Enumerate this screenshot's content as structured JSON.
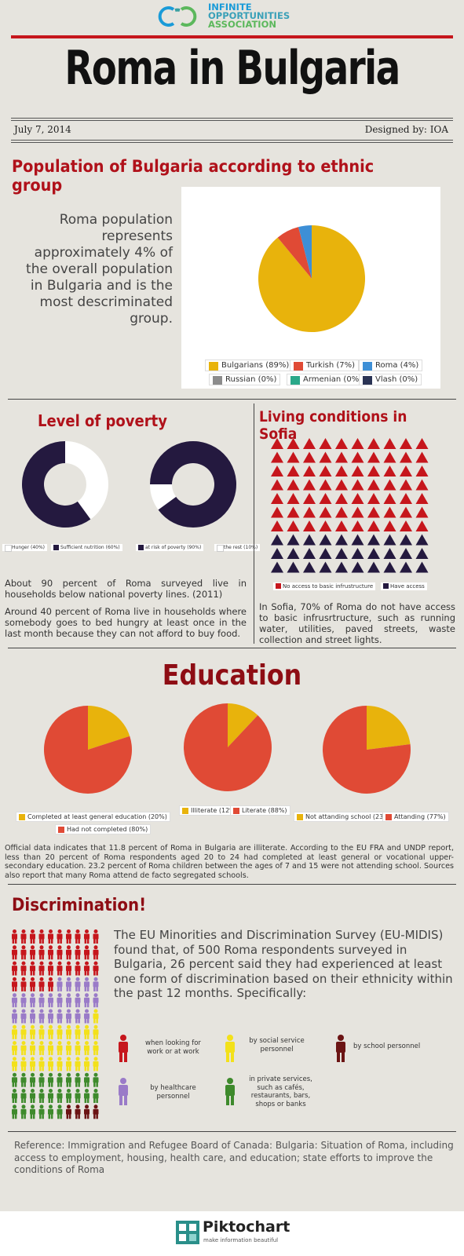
{
  "header": {
    "logo_line1": "INFINITE",
    "logo_line2": "OPPORTUNITIES",
    "logo_line3": "ASSOCIATION",
    "title": "Roma in Bulgaria",
    "date": "July 7, 2014",
    "designer": "Designed by: IOA"
  },
  "colors": {
    "red": "#c6161c",
    "navy": "#24193f",
    "yellow": "#e8b30c",
    "slice_red": "#e04a35",
    "blue": "#3d8fd6",
    "grey": "#8c8c8c",
    "teal": "#2aa889",
    "dark": "#2a3354",
    "purple": "#9a7bc8",
    "green": "#3e8a2c",
    "maroon": "#6b1414"
  },
  "population": {
    "title": "Population of Bulgaria according to ethnic group",
    "text": "Roma population represents approximately 4% of the overall population in Bulgaria and is the most descriminated group.",
    "chart_data": {
      "type": "pie",
      "categories": [
        "Bulgarians (89%)",
        "Turkish (7%)",
        "Roma (4%)",
        "Russian (0%)",
        "Armenian (0%)",
        "Vlash (0%)"
      ],
      "values": [
        89,
        7,
        4,
        0,
        0,
        0
      ],
      "colors": [
        "#e8b30c",
        "#e04a35",
        "#3d8fd6",
        "#8c8c8c",
        "#2aa889",
        "#2a3354"
      ],
      "legend": "bottom"
    }
  },
  "poverty": {
    "title": "Level of poverty",
    "chart_data": [
      {
        "type": "pie",
        "categories": [
          "Hunger (40%)",
          "Sufficient nutrition (60%)"
        ],
        "values": [
          40,
          60
        ],
        "colors": [
          "#ffffff",
          "#24193f"
        ],
        "legend": "bottom"
      },
      {
        "type": "pie",
        "categories": [
          "at risk of poverty (90%)",
          "the rest (10%)"
        ],
        "values": [
          90,
          10
        ],
        "colors": [
          "#24193f",
          "#ffffff"
        ],
        "legend": "bottom"
      }
    ],
    "text1": "About 90 percent of Roma surveyed live in households below national poverty lines. (2011)",
    "text2": "Around 40 percent of Roma live in households where somebody goes to bed hungry at least once in the last month because they can not afford to buy food."
  },
  "living": {
    "title": "Living conditions in Sofia",
    "no_access_label": "No access to basic infrustructure",
    "access_label": "Have access",
    "no_access_pct": 70,
    "text": "In Sofia, 70% of Roma do not have access to basic infrusrtructure, such as running water, utilities, paved streets, waste collection and street lights."
  },
  "education": {
    "title": "Education",
    "chart_data": [
      {
        "type": "pie",
        "categories": [
          "Completed at least general education (20%)",
          "Had not completed (80%)"
        ],
        "values": [
          20,
          80
        ],
        "colors": [
          "#e8b30c",
          "#e04a35"
        ],
        "legend": "bottom"
      },
      {
        "type": "pie",
        "categories": [
          "Illiterate (12%)",
          "Literate (88%)"
        ],
        "values": [
          12,
          88
        ],
        "colors": [
          "#e8b30c",
          "#e04a35"
        ],
        "legend": "bottom"
      },
      {
        "type": "pie",
        "categories": [
          "Not attanding school (23%)",
          "Attanding (77%)"
        ],
        "values": [
          23,
          77
        ],
        "colors": [
          "#e8b30c",
          "#e04a35"
        ],
        "legend": "bottom"
      }
    ],
    "text": "Official data indicates that 11.8 percent of Roma in Bulgaria are illiterate. According to the EU FRA and UNDP report, less than 20 percent of Roma respondents aged 20 to 24 had completed at least general or vocational upper-secondary education. 23.2 percent of Roma children between the ages of 7 and 15 were not attending school. Sources also report that many Roma attend de facto segregated schools."
  },
  "discrimination": {
    "title": "Discrimination!",
    "text": "The EU Minorities and Discrimination Survey (EU-MIDIS) found that, of 500 Roma respondents surveyed in Bulgaria, 26 percent said they had experienced at least one form of discrimination based on their ethnicity within the past 12 months. Specifically:",
    "legend": {
      "work": "when looking for work or at work",
      "social": "by social service personnel",
      "school": "by school personnel",
      "health": "by healthcare personnel",
      "private": "in private services, such as cafés, restaurants, bars, shops or banks"
    }
  },
  "reference": "Reference: Immigration and Refugee Board of Canada: Bulgaria: Situation of Roma, including access to employment, housing, health care, and education; state efforts to improve the conditions of Roma",
  "footer": {
    "brand": "Piktochart",
    "tagline": "make information beautiful"
  }
}
